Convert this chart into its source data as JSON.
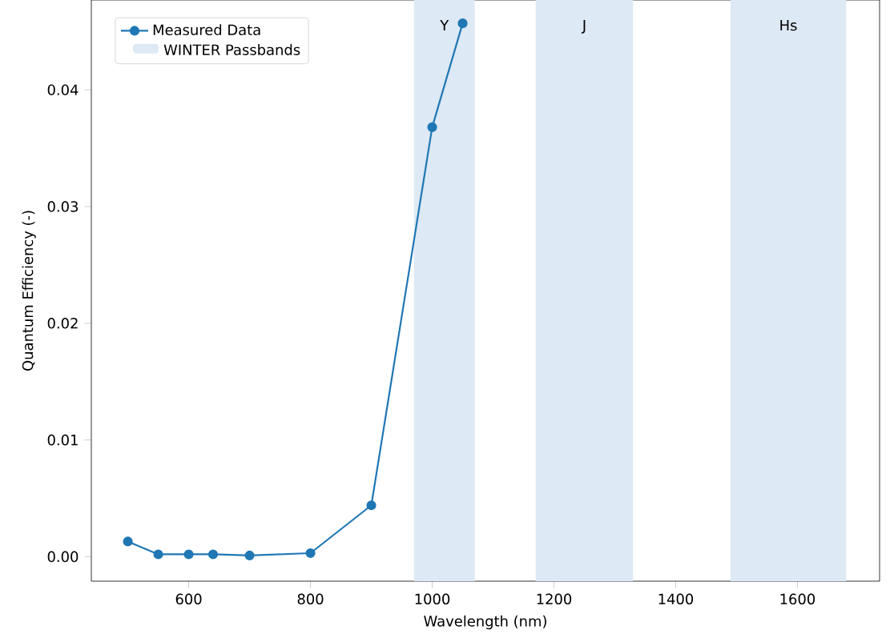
{
  "chart_data": {
    "type": "line",
    "xlabel": "Wavelength (nm)",
    "ylabel": "Quantum Efficiency (-)",
    "series": [
      {
        "name": "Measured Data",
        "color": "#1f77b4",
        "x": [
          500,
          550,
          600,
          640,
          700,
          800,
          900,
          1000,
          1050
        ],
        "values": [
          0.0013,
          0.0002,
          0.0002,
          0.0002,
          0.0001,
          0.0003,
          0.0044,
          0.0368,
          0.0457
        ]
      }
    ],
    "bands": [
      {
        "axis": "x",
        "from": 970,
        "to": 1070,
        "label": "Y",
        "color": "#dde9f4"
      },
      {
        "axis": "x",
        "from": 1170,
        "to": 1330,
        "label": "J",
        "color": "#dde9f4"
      },
      {
        "axis": "x",
        "from": 1490,
        "to": 1680,
        "label": "Hs",
        "color": "#dde9f4"
      }
    ],
    "annotations": [
      "WINTER Passbands"
    ],
    "xlim": [
      440,
      1735
    ],
    "ylim": [
      -0.0021,
      0.0477
    ],
    "xticks": [
      600,
      800,
      1000,
      1200,
      1400,
      1600
    ],
    "yticks": [
      {
        "value": 0,
        "label": "0.00"
      },
      {
        "value": 0.01,
        "label": "0.01"
      },
      {
        "value": 0.02,
        "label": "0.02"
      },
      {
        "value": 0.03,
        "label": "0.03"
      },
      {
        "value": 0.04,
        "label": "0.04"
      }
    ],
    "marker": "circle",
    "line_style": "solid",
    "legend": "top left",
    "grid": false
  }
}
